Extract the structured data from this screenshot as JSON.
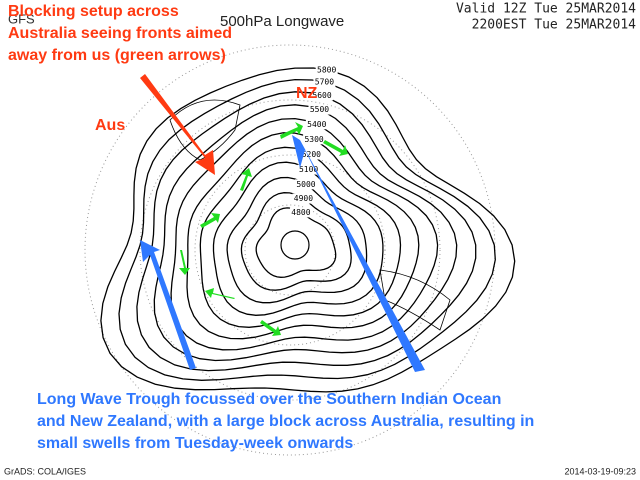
{
  "header": {
    "model": "GFS",
    "title": "500hPa Longwave",
    "valid_line1": "Valid 12Z Tue 25MAR2014",
    "valid_line2": "2200EST Tue 25MAR2014"
  },
  "annotations": {
    "blocking": [
      "Blocking setup across",
      "Australia seeing fronts aimed",
      "away from us (green arrows)"
    ],
    "aus": "Aus",
    "nz": "NZ",
    "trough": [
      "Long Wave Trough focussed over the Southern Indian Ocean",
      "and New Zealand, with a large block across Australia, resulting in",
      "small swells from Tuesday-week onwards"
    ]
  },
  "contour_labels": [
    "5800",
    "5700",
    "5600",
    "5500",
    "5400",
    "5300",
    "5200",
    "5100",
    "5000",
    "4900",
    "4800"
  ],
  "footer": {
    "credit": "GrADS: COLA/IGES",
    "timestamp": "2014-03-19-09:23"
  }
}
